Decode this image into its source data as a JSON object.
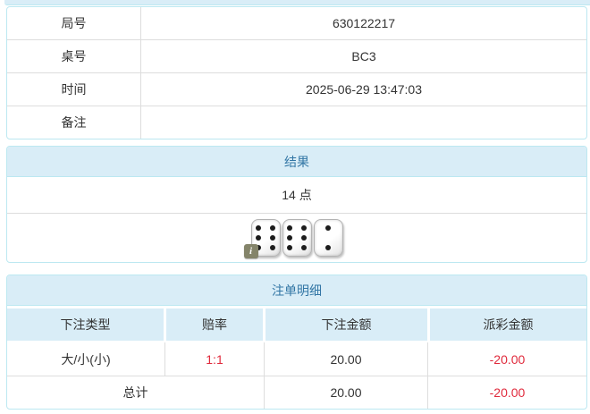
{
  "colors": {
    "panel_bg": "#d9edf7",
    "panel_border": "#bce8f1",
    "heading_text": "#3276a5",
    "cell_border": "#dddddd",
    "text": "#333333",
    "negative_red": "#e02a3c"
  },
  "info_table": {
    "rows": [
      {
        "label": "局号",
        "value": "630122217"
      },
      {
        "label": "桌号",
        "value": "BC3"
      },
      {
        "label": "时间",
        "value": "2025-06-29 13:47:03"
      },
      {
        "label": "备注",
        "value": ""
      }
    ]
  },
  "result": {
    "title": "结果",
    "points": "14 点",
    "dice": [
      6,
      6,
      2
    ],
    "info_badge": "i"
  },
  "bets": {
    "title": "注单明细",
    "columns": [
      "下注类型",
      "赔率",
      "下注金额",
      "派彩金额"
    ],
    "rows": [
      {
        "type": "大/小(小)",
        "odds": "1:1",
        "amount": "20.00",
        "payout": "-20.00"
      }
    ],
    "total": {
      "label": "总计",
      "amount": "20.00",
      "payout": "-20.00"
    }
  }
}
